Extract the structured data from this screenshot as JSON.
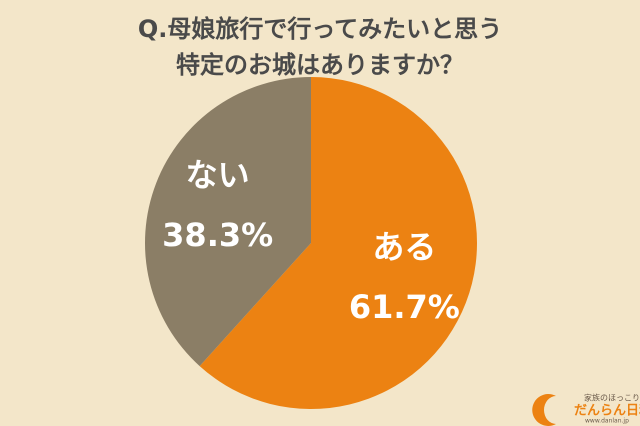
{
  "chart_data": {
    "type": "pie",
    "title": [
      "Q.母娘旅行で行ってみたいと思う",
      "特定のお城はありますか？"
    ],
    "categories": [
      "ある",
      "ない"
    ],
    "values": [
      61.7,
      38.3
    ],
    "value_labels": [
      "61.7%",
      "38.3%"
    ],
    "colors": [
      "#ec8212",
      "#8b7e66"
    ]
  },
  "logo": {
    "tagline": "家族のほっこりメディア",
    "name": "だんらん日和",
    "url": "www.danlan.jp"
  }
}
